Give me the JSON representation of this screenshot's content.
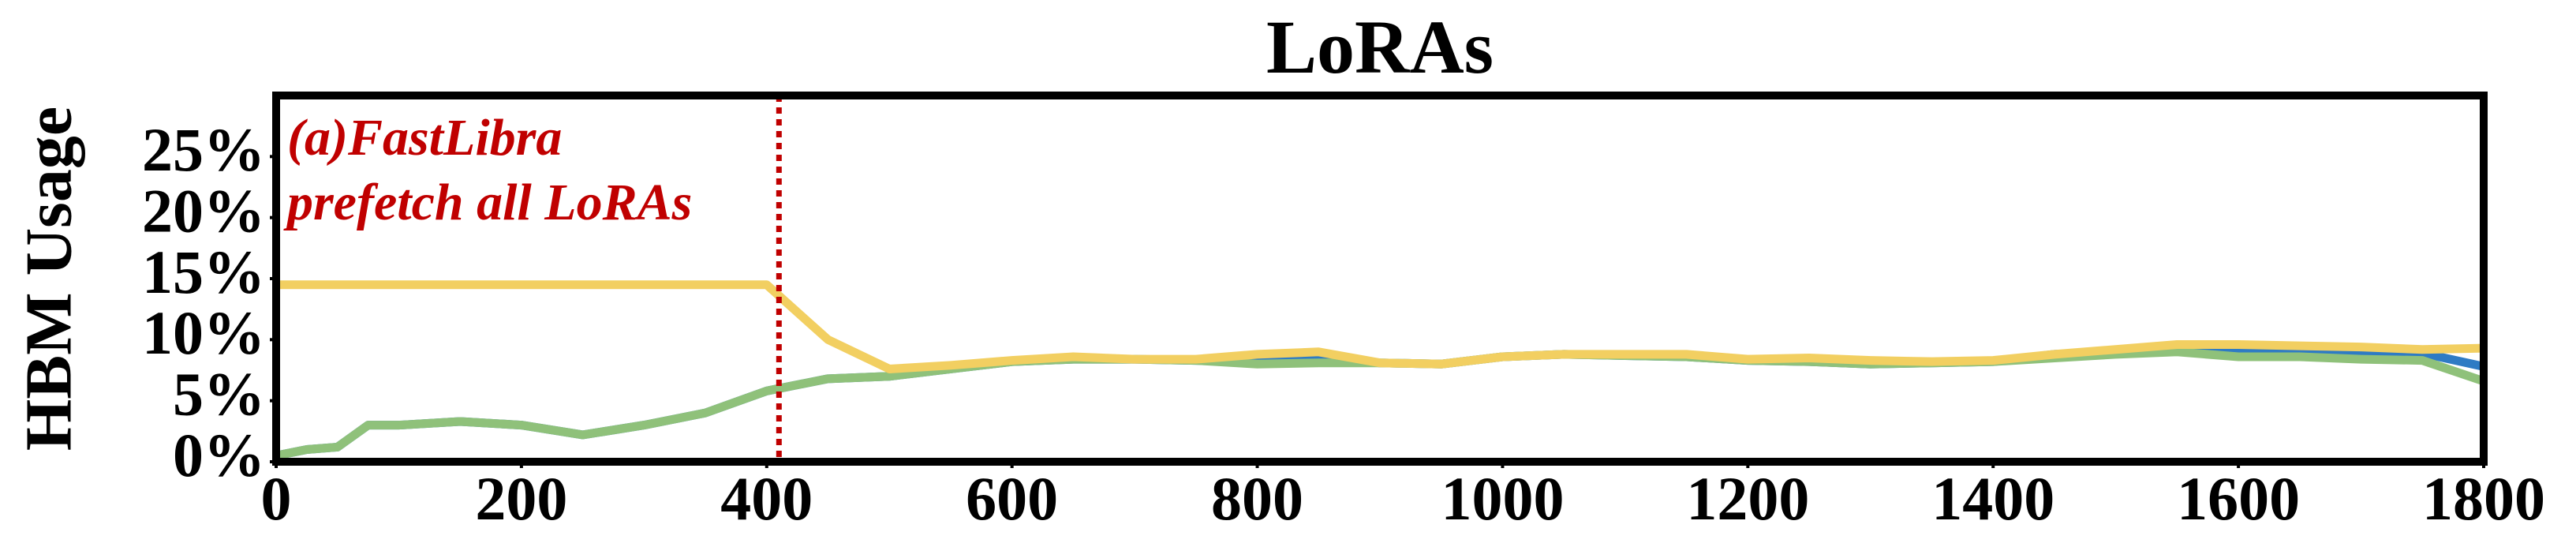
{
  "chart_data": {
    "type": "line",
    "title": "LoRAs",
    "y_label": "HBM Usage",
    "x": [
      0,
      25,
      50,
      75,
      100,
      150,
      200,
      250,
      300,
      350,
      400,
      450,
      500,
      550,
      600,
      650,
      700,
      750,
      800,
      850,
      900,
      950,
      1000,
      1050,
      1100,
      1150,
      1200,
      1250,
      1300,
      1350,
      1400,
      1450,
      1500,
      1550,
      1600,
      1650,
      1700,
      1750,
      1800
    ],
    "series": [
      {
        "name": "blue",
        "color": "#2e7bc4",
        "values": [
          0.5,
          1,
          1.2,
          3,
          3,
          3.3,
          3,
          2.2,
          3,
          4,
          5.8,
          6.8,
          7,
          7.6,
          8.2,
          8.4,
          8.4,
          8.3,
          8.2,
          8.6,
          8.1,
          8,
          8.6,
          8.8,
          8.7,
          8.6,
          8.3,
          8.2,
          8,
          8.1,
          8.2,
          8.8,
          9,
          9.4,
          9.2,
          9.1,
          9,
          8.9,
          7.8
        ]
      },
      {
        "name": "green",
        "color": "#8fc17a",
        "values": [
          0.5,
          1,
          1.2,
          3,
          3,
          3.3,
          3,
          2.2,
          3,
          4,
          5.8,
          6.8,
          7,
          7.6,
          8.2,
          8.4,
          8.4,
          8.3,
          8,
          8.1,
          8.1,
          8,
          8.6,
          8.8,
          8.7,
          8.6,
          8.3,
          8.2,
          8,
          8.1,
          8.2,
          8.5,
          8.8,
          9,
          8.6,
          8.6,
          8.4,
          8.3,
          6.6
        ]
      },
      {
        "name": "yellow",
        "color": "#f2cf61",
        "values": [
          14.5,
          14.5,
          14.5,
          14.5,
          14.5,
          14.5,
          14.5,
          14.5,
          14.5,
          14.5,
          14.5,
          10,
          7.6,
          7.9,
          8.3,
          8.6,
          8.4,
          8.4,
          8.8,
          9,
          8.1,
          8,
          8.6,
          8.8,
          8.8,
          8.8,
          8.4,
          8.5,
          8.3,
          8.2,
          8.3,
          8.8,
          9.2,
          9.6,
          9.6,
          9.5,
          9.4,
          9.2,
          9.3
        ]
      }
    ],
    "xlim": [
      0,
      1800
    ],
    "xticks": [
      0,
      200,
      400,
      600,
      800,
      1000,
      1200,
      1400,
      1600,
      1800
    ],
    "ylim": [
      0,
      30
    ],
    "yticks": [
      {
        "value": 0,
        "label": "0%"
      },
      {
        "value": 5,
        "label": "5%"
      },
      {
        "value": 10,
        "label": "10%"
      },
      {
        "value": 15,
        "label": "15%"
      },
      {
        "value": 20,
        "label": "20%"
      },
      {
        "value": 25,
        "label": "25%"
      }
    ],
    "vline": {
      "x": 410,
      "color": "#c00000"
    },
    "annotation": [
      "(a)FastLibra",
      "prefetch all LoRAs"
    ]
  }
}
